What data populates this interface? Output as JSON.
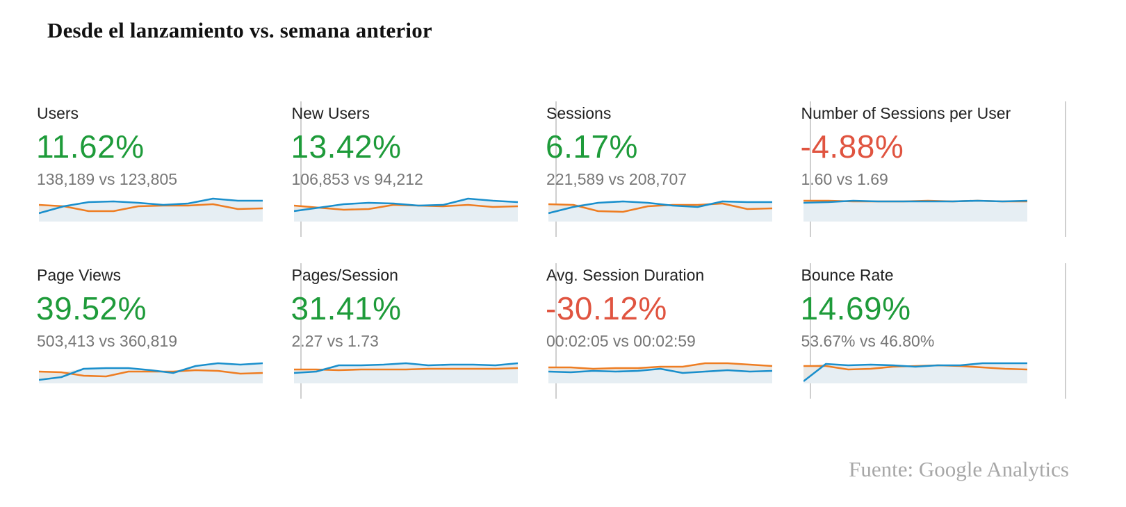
{
  "title": "Desde el lanzamiento vs. semana anterior",
  "source": "Fuente: Google Analytics",
  "colors": {
    "current": "#1a8fcc",
    "previous": "#ee7d22",
    "area": "#eae8e4",
    "positive": "#1e9b3a",
    "negative": "#e05440"
  },
  "chart_data": [
    {
      "type": "line",
      "name": "Users",
      "change": "11.62%",
      "trend": "up",
      "comparison": "138,189 vs 123,805",
      "series": [
        {
          "role": "current",
          "values": [
            12,
            22,
            28,
            29,
            27,
            24,
            26,
            33,
            30,
            30
          ]
        },
        {
          "role": "previous",
          "values": [
            24,
            22,
            15,
            15,
            22,
            23,
            23,
            25,
            18,
            19
          ]
        }
      ]
    },
    {
      "type": "line",
      "name": "New Users",
      "change": "13.42%",
      "trend": "up",
      "comparison": "106,853 vs 94,212",
      "series": [
        {
          "role": "current",
          "values": [
            15,
            20,
            25,
            27,
            26,
            23,
            24,
            33,
            30,
            28
          ]
        },
        {
          "role": "previous",
          "values": [
            23,
            20,
            17,
            18,
            24,
            23,
            22,
            24,
            21,
            22
          ]
        }
      ]
    },
    {
      "type": "line",
      "name": "Sessions",
      "change": "6.17%",
      "trend": "up",
      "comparison": "221,589 vs 208,707",
      "series": [
        {
          "role": "current",
          "values": [
            12,
            21,
            27,
            29,
            27,
            23,
            21,
            29,
            28,
            28
          ]
        },
        {
          "role": "previous",
          "values": [
            25,
            24,
            15,
            14,
            22,
            24,
            24,
            26,
            18,
            19
          ]
        }
      ]
    },
    {
      "type": "line",
      "name": "Number of Sessions per User",
      "change": "-4.88%",
      "trend": "down",
      "comparison": "1.60 vs 1.69",
      "series": [
        {
          "role": "current",
          "values": [
            27,
            28,
            30,
            29,
            29,
            29,
            29,
            30,
            29,
            30
          ]
        },
        {
          "role": "previous",
          "values": [
            30,
            30,
            29,
            29,
            29,
            30,
            29,
            30,
            29,
            29
          ]
        }
      ]
    },
    {
      "type": "line",
      "name": "Page Views",
      "change": "39.52%",
      "trend": "up",
      "comparison": "503,413 vs 360,819",
      "series": [
        {
          "role": "current",
          "values": [
            5,
            9,
            21,
            22,
            22,
            19,
            15,
            25,
            29,
            27,
            29
          ]
        },
        {
          "role": "previous",
          "values": [
            17,
            16,
            11,
            10,
            17,
            17,
            17,
            19,
            18,
            14,
            15
          ]
        }
      ]
    },
    {
      "type": "line",
      "name": "Pages/Session",
      "change": "31.41%",
      "trend": "up",
      "comparison": "2.27 vs 1.73",
      "series": [
        {
          "role": "current",
          "values": [
            15,
            17,
            26,
            26,
            27,
            29,
            26,
            27,
            27,
            26,
            29
          ]
        },
        {
          "role": "previous",
          "values": [
            20,
            20,
            19,
            20,
            20,
            20,
            21,
            21,
            21,
            21,
            22
          ]
        }
      ]
    },
    {
      "type": "line",
      "name": "Avg. Session Duration",
      "change": "-30.12%",
      "trend": "down",
      "comparison": "00:02:05 vs 00:02:59",
      "series": [
        {
          "role": "current",
          "values": [
            17,
            16,
            18,
            17,
            18,
            21,
            15,
            17,
            19,
            17,
            18
          ]
        },
        {
          "role": "previous",
          "values": [
            23,
            23,
            21,
            22,
            22,
            24,
            24,
            29,
            29,
            27,
            25
          ]
        }
      ]
    },
    {
      "type": "line",
      "name": "Bounce Rate",
      "change": "14.69%",
      "trend": "up",
      "comparison": "53.67% vs 46.80%",
      "series": [
        {
          "role": "current",
          "values": [
            3,
            28,
            26,
            27,
            26,
            24,
            26,
            26,
            29,
            29,
            29
          ]
        },
        {
          "role": "previous",
          "values": [
            25,
            25,
            20,
            21,
            24,
            25,
            26,
            25,
            23,
            21,
            20
          ]
        }
      ]
    }
  ]
}
